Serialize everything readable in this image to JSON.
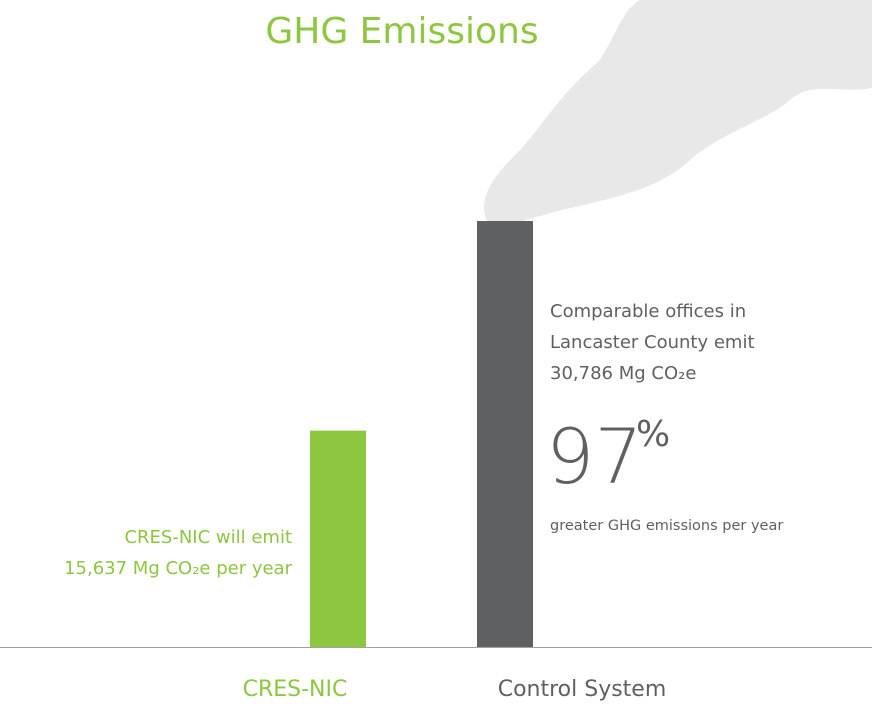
{
  "chart_data": {
    "type": "bar",
    "title": "GHG Emissions",
    "categories": [
      "CRES-NIC",
      "Control System"
    ],
    "values": [
      15637,
      30786
    ],
    "colors": [
      "#8dc63f",
      "#5f6062"
    ],
    "annotations": [
      [
        "CRES-NIC will emit",
        "15,637 Mg CO₂e per year"
      ],
      [
        "Comparable offices in",
        "Lancaster County emit",
        "30,786 Mg CO₂e"
      ]
    ],
    "highlight": {
      "number": "97",
      "symbol": "%",
      "caption": "greater GHG emissions per year"
    }
  }
}
